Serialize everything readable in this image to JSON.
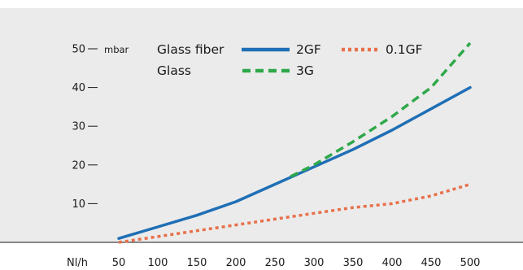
{
  "chart_data": {
    "type": "line",
    "xlabel": "Nl/h",
    "ylabel": "mbar",
    "x_ticks": [
      50,
      100,
      150,
      200,
      250,
      300,
      350,
      400,
      450,
      500
    ],
    "y_ticks": [
      10,
      20,
      30,
      40,
      50
    ],
    "xlim": [
      50,
      500
    ],
    "ylim": [
      0,
      50
    ],
    "grid": false,
    "legend": {
      "placement": "top",
      "groups": [
        {
          "label": "Glass fiber",
          "series": [
            "2GF",
            "0.1GF"
          ]
        },
        {
          "label": "Glass",
          "series": [
            "3G"
          ]
        }
      ]
    },
    "series": [
      {
        "name": "2GF",
        "color": "#1f6fb5",
        "style": "solid",
        "x": [
          50,
          100,
          150,
          200,
          250,
          300,
          350,
          400,
          450,
          500
        ],
        "y": [
          1,
          4,
          7,
          10.5,
          15,
          19.5,
          24,
          29,
          34.5,
          40
        ]
      },
      {
        "name": "3G",
        "color": "#2fa84a",
        "style": "dashed",
        "x": [
          270,
          300,
          350,
          400,
          450,
          500
        ],
        "y": [
          17,
          20,
          26,
          32.5,
          40,
          51.5
        ]
      },
      {
        "name": "0.1GF",
        "color": "#e8704a",
        "style": "dotted",
        "x": [
          50,
          100,
          150,
          200,
          250,
          300,
          350,
          400,
          450,
          500
        ],
        "y": [
          0,
          1.5,
          3,
          4.5,
          6,
          7.5,
          9,
          10,
          12,
          15
        ]
      }
    ]
  }
}
